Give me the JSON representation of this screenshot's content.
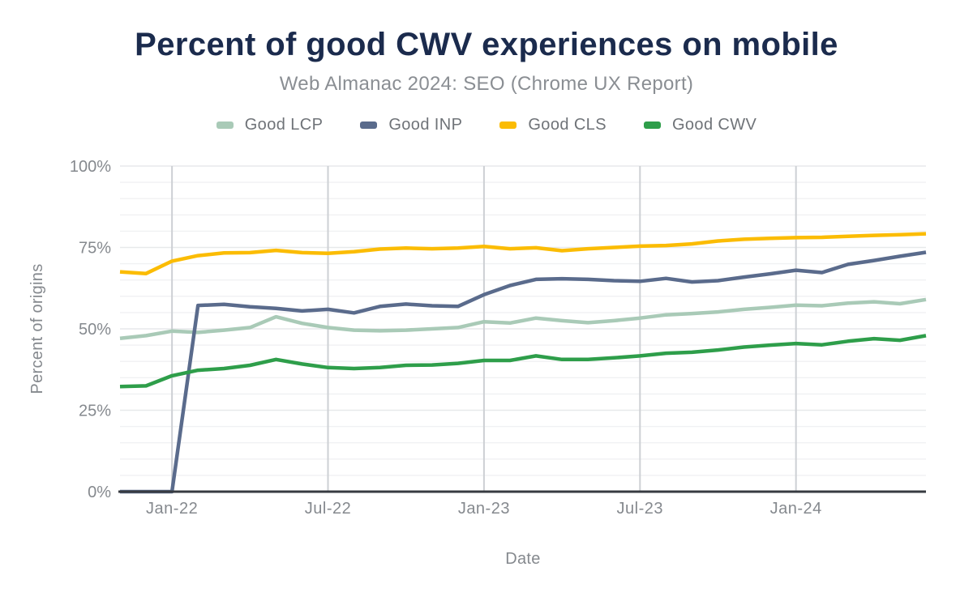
{
  "chart_data": {
    "type": "line",
    "title": "Percent of good CWV experiences on mobile",
    "subtitle": "Web Almanac 2024: SEO (Chrome UX Report)",
    "xlabel": "Date",
    "ylabel": "Percent of origins",
    "ylim": [
      0,
      100
    ],
    "grid": true,
    "legend_position": "top",
    "minor_grid_step": 5,
    "y_ticks": [
      {
        "label": "0%",
        "value": 0
      },
      {
        "label": "25%",
        "value": 25
      },
      {
        "label": "50%",
        "value": 50
      },
      {
        "label": "75%",
        "value": 75
      },
      {
        "label": "100%",
        "value": 100
      }
    ],
    "x_ticks": [
      {
        "label": "Jan-22",
        "index": 2
      },
      {
        "label": "Jul-22",
        "index": 8
      },
      {
        "label": "Jan-23",
        "index": 14
      },
      {
        "label": "Jul-23",
        "index": 20
      },
      {
        "label": "Jan-24",
        "index": 26
      }
    ],
    "categories": [
      "Nov-21",
      "Dec-21",
      "Jan-22",
      "Feb-22",
      "Mar-22",
      "Apr-22",
      "May-22",
      "Jun-22",
      "Jul-22",
      "Aug-22",
      "Sep-22",
      "Oct-22",
      "Nov-22",
      "Dec-22",
      "Jan-23",
      "Feb-23",
      "Mar-23",
      "Apr-23",
      "May-23",
      "Jun-23",
      "Jul-23",
      "Aug-23",
      "Sep-23",
      "Oct-23",
      "Nov-23",
      "Dec-23",
      "Jan-24",
      "Feb-24",
      "Mar-24",
      "Apr-24",
      "May-24",
      "Jun-24"
    ],
    "series": [
      {
        "name": "Good LCP",
        "color": "#A9CAB7",
        "values": [
          47.1,
          47.9,
          49.3,
          48.9,
          49.6,
          50.4,
          53.7,
          51.7,
          50.4,
          49.6,
          49.4,
          49.6,
          50.0,
          50.4,
          52.2,
          51.8,
          53.3,
          52.5,
          51.9,
          52.5,
          53.3,
          54.3,
          54.7,
          55.2,
          56.0,
          56.6,
          57.3,
          57.1,
          57.9,
          58.3,
          57.7,
          59.0
        ]
      },
      {
        "name": "Good INP",
        "color": "#5A6B8C",
        "values": [
          0,
          0,
          0,
          57.2,
          57.5,
          56.8,
          56.3,
          55.5,
          56.0,
          54.9,
          56.9,
          57.6,
          57.1,
          56.9,
          60.5,
          63.3,
          65.2,
          65.4,
          65.2,
          64.8,
          64.6,
          65.5,
          64.4,
          64.8,
          65.9,
          66.9,
          68.0,
          67.3,
          69.8,
          71.0,
          72.3,
          73.5
        ]
      },
      {
        "name": "Good CLS",
        "color": "#FBBC04",
        "values": [
          67.5,
          67.0,
          70.8,
          72.5,
          73.3,
          73.4,
          74.1,
          73.4,
          73.2,
          73.7,
          74.5,
          74.8,
          74.6,
          74.8,
          75.3,
          74.6,
          74.9,
          74.0,
          74.6,
          75.0,
          75.4,
          75.6,
          76.1,
          77.0,
          77.5,
          77.8,
          78.0,
          78.1,
          78.4,
          78.7,
          78.9,
          79.2
        ]
      },
      {
        "name": "Good CWV",
        "color": "#2E9E4A",
        "values": [
          32.3,
          32.5,
          35.6,
          37.3,
          37.8,
          38.8,
          40.6,
          39.2,
          38.1,
          37.8,
          38.1,
          38.8,
          38.9,
          39.4,
          40.3,
          40.3,
          41.7,
          40.6,
          40.6,
          41.1,
          41.7,
          42.5,
          42.8,
          43.5,
          44.4,
          45.0,
          45.5,
          45.1,
          46.2,
          47.0,
          46.5,
          47.9
        ]
      }
    ],
    "style": {
      "title_color": "#1B2B4D",
      "subtitle_color": "#8A8E93",
      "legend_text_color": "#6F7378",
      "tick_text_color": "#85898E",
      "axis_title_color": "#85898E",
      "axis_line_color": "#373B41",
      "grid_minor_color": "#F0F1F3",
      "grid_major_color": "#E7E9EB",
      "vgrid_color": "#CDD0D4",
      "background": "#ffffff"
    }
  }
}
